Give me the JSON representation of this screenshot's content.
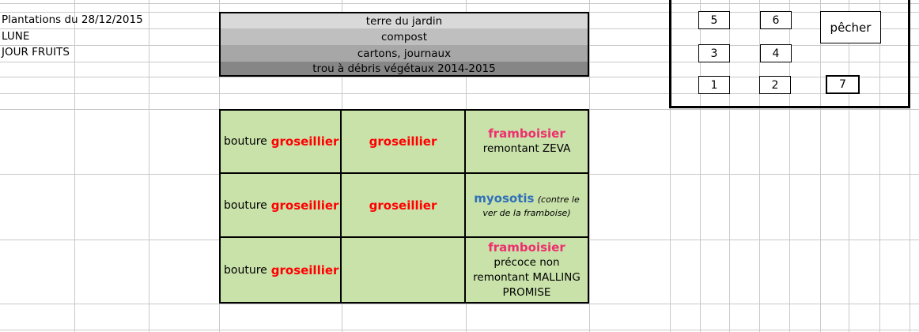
{
  "left_labels": {
    "title": "Plantations du 28/12/2015",
    "lune": "LUNE",
    "jour_fruits": "JOUR FRUITS"
  },
  "soil_layers": {
    "layers": [
      {
        "label": "terre du jardin",
        "color": "#d9d9d9"
      },
      {
        "label": "compost",
        "color": "#bfbfbf"
      },
      {
        "label": "cartons, journaux",
        "color": "#a7a7a7"
      },
      {
        "label": "trou à débris végétaux 2014-2015",
        "color": "#868686"
      }
    ]
  },
  "plot_markers": {
    "n1": "1",
    "n2": "2",
    "n3": "3",
    "n4": "4",
    "n5": "5",
    "n6": "6",
    "n7": "7",
    "pecher": "pêcher"
  },
  "planting_table": {
    "r1c1_prefix": "bouture",
    "r1c1_name": "groseillier",
    "r1c2_name": "groseillier",
    "r1c3_head": "framboisier",
    "r1c3_body": "remontant ZEVA",
    "r2c1_prefix": "bouture",
    "r2c1_name": "groseillier",
    "r2c2_name": "groseillier",
    "r2c3_head": "myosotis",
    "r2c3_note": "(contre le ver de la framboise)",
    "r3c1_prefix": "bouture",
    "r3c1_name": "groseillier",
    "r3c2_empty": "",
    "r3c3_head": "framboisier",
    "r3c3_body": "précoce non remontant MALLING PROMISE"
  },
  "colors": {
    "cell_green": "#c9e2aa",
    "marker7_green": "#c9e2aa",
    "accent_red": "#ff0000",
    "accent_pink": "#ee2e6e",
    "accent_blue": "#3070b8",
    "gridline": "#c9c9c9"
  }
}
